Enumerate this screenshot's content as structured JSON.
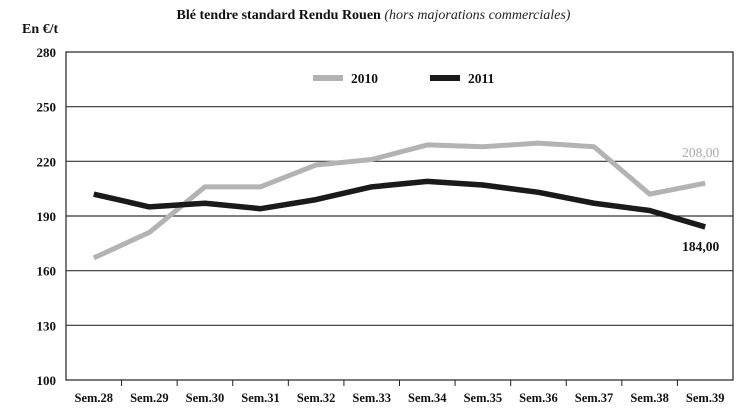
{
  "chart_data": {
    "type": "line",
    "title": "Blé tendre standard Rendu Rouen",
    "subtitle": "(hors majorations commerciales)",
    "ylabel": "En €/t",
    "xlabel": "",
    "categories": [
      "Sem.28",
      "Sem.29",
      "Sem.30",
      "Sem.31",
      "Sem.32",
      "Sem.33",
      "Sem.34",
      "Sem.35",
      "Sem.36",
      "Sem.37",
      "Sem.38",
      "Sem.39"
    ],
    "ylim": [
      100,
      280
    ],
    "yticks": [
      100,
      130,
      160,
      190,
      220,
      250,
      280
    ],
    "grid": true,
    "legend_position": "top-center",
    "series": [
      {
        "name": "2010",
        "color": "#b3b3b3",
        "values": [
          167,
          181,
          206,
          206,
          218,
          221,
          229,
          228,
          230,
          228,
          202,
          208
        ],
        "end_label": "208,00"
      },
      {
        "name": "2011",
        "color": "#1a1a1a",
        "values": [
          202,
          195,
          197,
          194,
          199,
          206,
          209,
          207,
          203,
          197,
          193,
          184
        ],
        "end_label": "184,00"
      }
    ]
  }
}
